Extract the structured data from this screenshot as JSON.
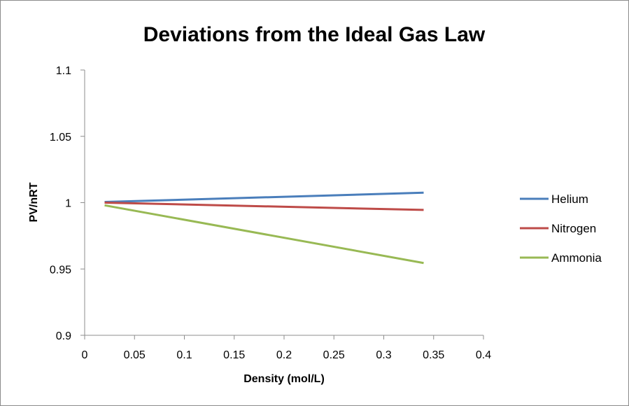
{
  "chart_data": {
    "type": "line",
    "title": "Deviations from the Ideal Gas Law",
    "xlabel": "Density (mol/L)",
    "ylabel": "PV/nRT",
    "xlim": [
      0,
      0.4
    ],
    "ylim": [
      0.9,
      1.1
    ],
    "x_ticks": [
      "0",
      "0.05",
      "0.1",
      "0.15",
      "0.2",
      "0.25",
      "0.3",
      "0.35",
      "0.4"
    ],
    "y_ticks": [
      "0.9",
      "0.95",
      "1",
      "1.05",
      "1.1"
    ],
    "x_tick_values": [
      0,
      0.05,
      0.1,
      0.15,
      0.2,
      0.25,
      0.3,
      0.35,
      0.4
    ],
    "y_tick_values": [
      0.9,
      0.95,
      1,
      1.05,
      1.1
    ],
    "grid": false,
    "legend_position": "right",
    "series": [
      {
        "name": "Helium",
        "color": "#4a7ebb",
        "x": [
          0.02,
          0.34
        ],
        "y": [
          1.0005,
          1.0075
        ]
      },
      {
        "name": "Nitrogen",
        "color": "#be4b48",
        "x": [
          0.02,
          0.34
        ],
        "y": [
          1.0,
          0.9945
        ]
      },
      {
        "name": "Ammonia",
        "color": "#98b954",
        "x": [
          0.02,
          0.34
        ],
        "y": [
          0.998,
          0.9545
        ]
      }
    ]
  }
}
